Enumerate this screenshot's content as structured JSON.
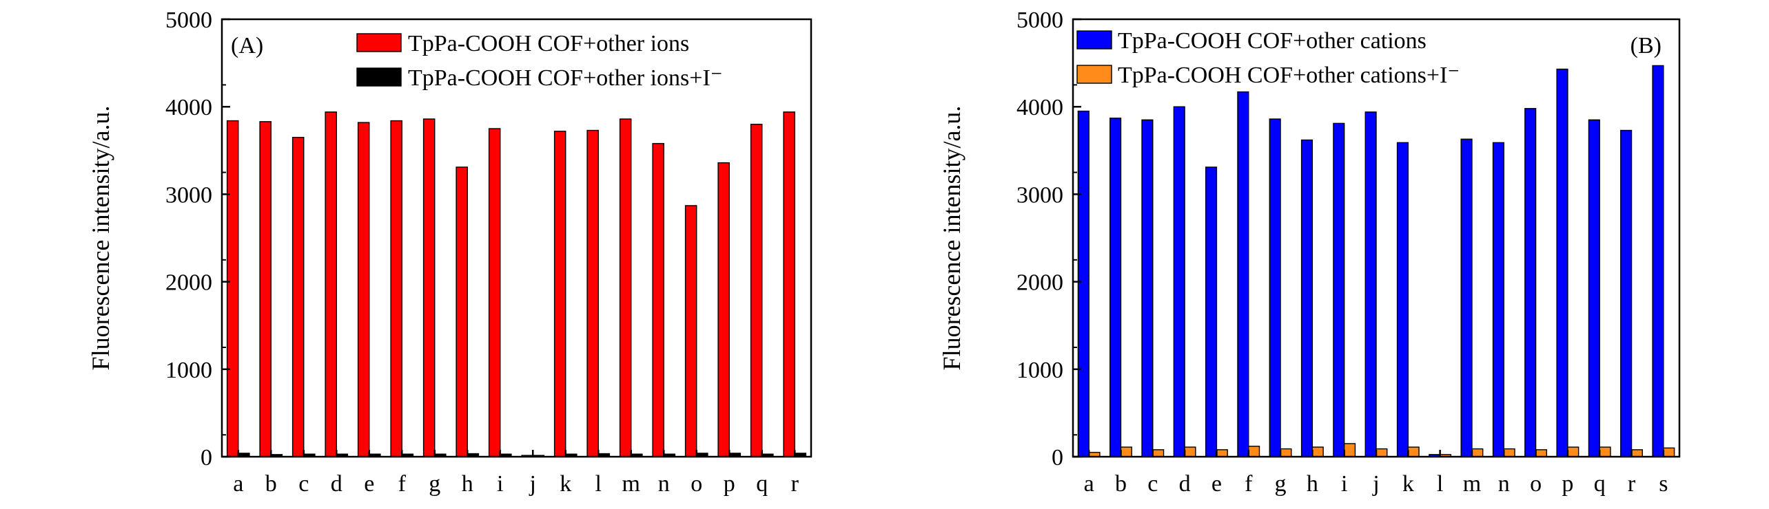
{
  "chart_data": [
    {
      "type": "bar",
      "panel_label": "(A)",
      "ylabel": "Fluorescence intensity/a.u.",
      "xlabel": "",
      "ylim": [
        0,
        5000
      ],
      "yticks": [
        0,
        1000,
        2000,
        3000,
        4000,
        5000
      ],
      "legend_position": "top-right",
      "categories": [
        "a",
        "b",
        "c",
        "d",
        "e",
        "f",
        "g",
        "h",
        "i",
        "j",
        "k",
        "l",
        "m",
        "n",
        "o",
        "p",
        "q",
        "r"
      ],
      "series": [
        {
          "name": "TpPa-COOH COF+other ions",
          "color": "#ff0000",
          "values": [
            3840,
            3830,
            3650,
            3940,
            3820,
            3840,
            3860,
            3310,
            3750,
            15,
            3720,
            3730,
            3860,
            3580,
            2870,
            3360,
            3800,
            3940
          ]
        },
        {
          "name": "TpPa-COOH COF+other ions+I⁻",
          "color": "#000000",
          "values": [
            40,
            25,
            30,
            30,
            30,
            30,
            30,
            35,
            30,
            15,
            30,
            35,
            30,
            30,
            40,
            40,
            30,
            40
          ]
        }
      ]
    },
    {
      "type": "bar",
      "panel_label": "(B)",
      "ylabel": "Fluorescence intensity/a.u.",
      "xlabel": "",
      "ylim": [
        0,
        5000
      ],
      "yticks": [
        0,
        1000,
        2000,
        3000,
        4000,
        5000
      ],
      "legend_position": "top-left",
      "categories": [
        "a",
        "b",
        "c",
        "d",
        "e",
        "f",
        "g",
        "h",
        "i",
        "j",
        "k",
        "l",
        "m",
        "n",
        "o",
        "p",
        "q",
        "r",
        "s"
      ],
      "series": [
        {
          "name": "TpPa-COOH COF+other cations",
          "color": "#0000ff",
          "values": [
            3950,
            3870,
            3850,
            4000,
            3310,
            4170,
            3860,
            3620,
            3810,
            3940,
            3590,
            25,
            3630,
            3590,
            3980,
            4430,
            3850,
            3730,
            4470
          ]
        },
        {
          "name": "TpPa-COOH COF+other cations+I⁻",
          "color": "#ff8c1a",
          "values": [
            50,
            110,
            80,
            110,
            80,
            120,
            90,
            110,
            150,
            90,
            110,
            25,
            90,
            90,
            80,
            110,
            110,
            80,
            100
          ]
        }
      ]
    }
  ]
}
